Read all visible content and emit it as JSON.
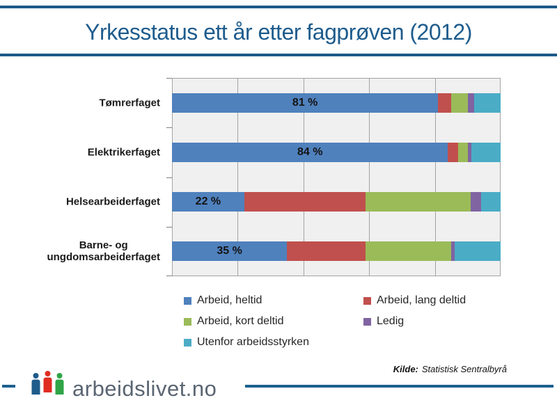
{
  "header": {
    "title": "Yrkesstatus ett år etter fagprøven (2012)",
    "title_color": "#1E5C8D",
    "rule_color": "#1B5A88"
  },
  "chart_data": {
    "type": "bar",
    "orientation": "horizontal-stacked",
    "title": "Yrkesstatus ett år etter fagprøven (2012)",
    "categories": [
      "Tømrerfaget",
      "Elektrikerfaget",
      "Helsearbeiderfaget",
      "Barne- og\nungdomsarbeiderfaget"
    ],
    "series": [
      {
        "name": "Arbeid, heltid",
        "color": "#4F81BD",
        "values": [
          81,
          84,
          22,
          35
        ]
      },
      {
        "name": "Arbeid, lang deltid",
        "color": "#C0504D",
        "values": [
          4,
          3,
          37,
          24
        ]
      },
      {
        "name": "Arbeid, kort deltid",
        "color": "#9BBB59",
        "values": [
          5,
          3,
          32,
          26
        ]
      },
      {
        "name": "Ledig",
        "color": "#8064A2",
        "values": [
          2,
          1,
          3,
          1
        ]
      },
      {
        "name": "Utenfor arbeidsstyrken",
        "color": "#4BACC6",
        "values": [
          8,
          9,
          6,
          14
        ]
      }
    ],
    "bar_labels": [
      "81 %",
      "84 %",
      "22 %",
      "35 %"
    ],
    "xlim": [
      0,
      100
    ],
    "unit": "percent",
    "gridline_interval_pct": 20,
    "grid": true,
    "plot_bg": "#F0F0F0",
    "gridline_color": "#A3A3A3",
    "legend_position": "bottom"
  },
  "footer": {
    "kilde_label": "Kilde:",
    "kilde_text": "Statistisk Sentralbyrå",
    "logo_text": "arbeidslivet.no",
    "logo_icon": "three-people-icon",
    "logo_icon_colors": [
      "#1E5C8B",
      "#E02D22",
      "#2FA547"
    ],
    "line_color": "#1C608F"
  }
}
